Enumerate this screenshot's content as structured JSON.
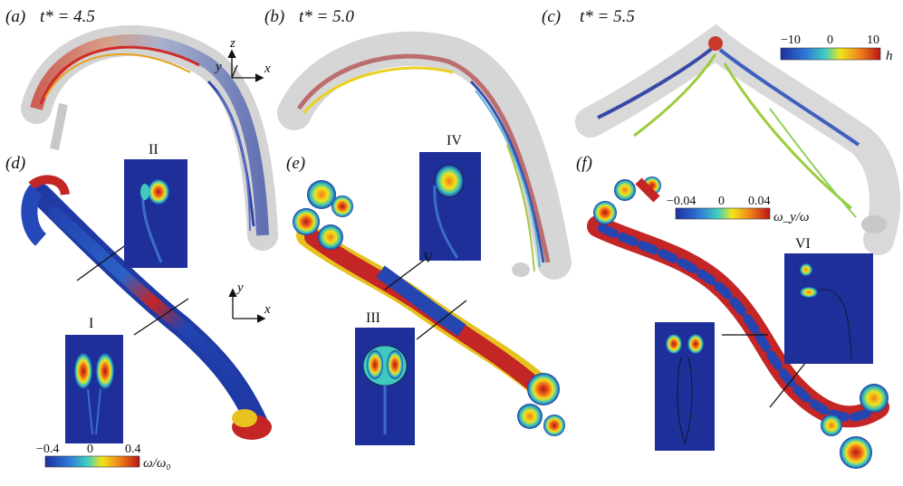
{
  "panels": [
    {
      "tag": "(a)",
      "time": "t* = 4.5"
    },
    {
      "tag": "(b)",
      "time": "t* = 5.0"
    },
    {
      "tag": "(c)",
      "time": "t* = 5.5"
    },
    {
      "tag": "(d)"
    },
    {
      "tag": "(e)"
    },
    {
      "tag": "(f)"
    }
  ],
  "axes3d": {
    "z": "z",
    "y": "y",
    "x": "x"
  },
  "axes2d_d": {
    "y": "y",
    "x": "x"
  },
  "sections": [
    "I",
    "II",
    "III",
    "IV",
    "V",
    "VI"
  ],
  "colorbar_h": {
    "ticks": [
      "−10",
      "0",
      "10"
    ],
    "label": "h"
  },
  "colorbar_wy": {
    "ticks": [
      "−0.04",
      "0",
      "0.04"
    ],
    "label": "ω_y/ω"
  },
  "colorbar_w0": {
    "ticks": [
      "−0.4",
      "0",
      "0.4"
    ],
    "label": "ω/ω₀"
  },
  "colors": {
    "ink": "#111111",
    "jet_low": "#1d2f9c",
    "jet_mid": "#3fd0b0",
    "jet_yel": "#f1e41a",
    "jet_high": "#c81d1d",
    "tube_gray": "#cfcfcf"
  }
}
